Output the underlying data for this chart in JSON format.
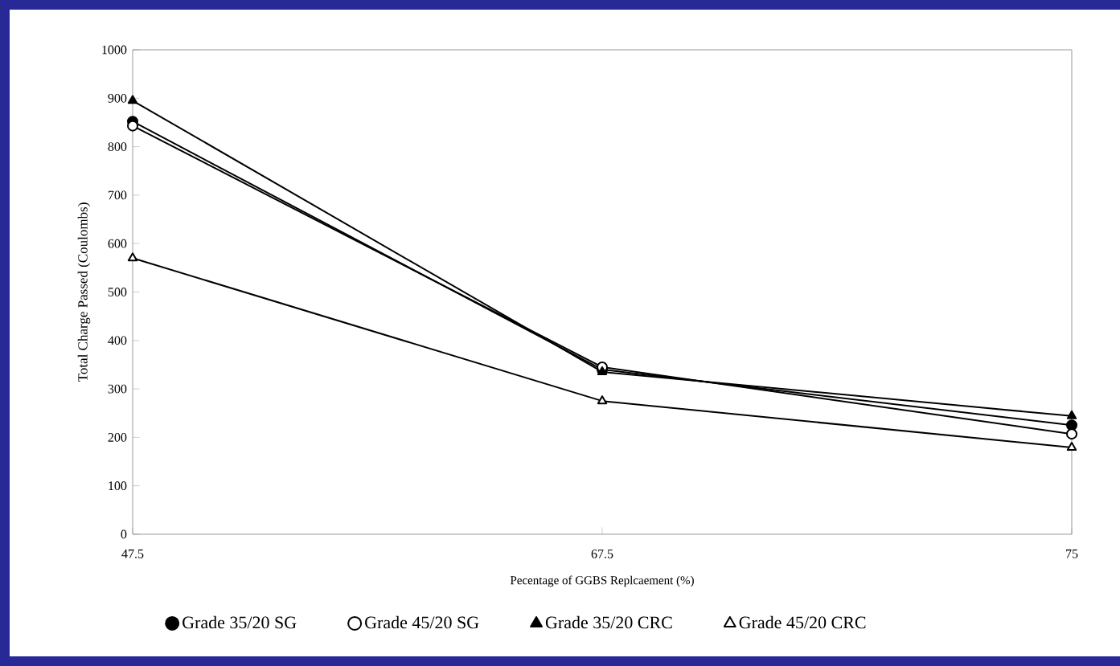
{
  "chart_data": {
    "type": "line",
    "xlabel": "Pecentage of GGBS Replcaement (%)",
    "ylabel": "Total Charge Passed (Coulombs)",
    "categories": [
      "47.5",
      "67.5",
      "75"
    ],
    "series": [
      {
        "name": "Grade 35/20 SG",
        "color": "#000000",
        "marker": "circle",
        "values": [
          852,
          340,
          225
        ]
      },
      {
        "name": "Grade 45/20 SG",
        "color": "#ffffff",
        "marker": "circle",
        "values": [
          843,
          345,
          207
        ]
      },
      {
        "name": "Grade 35/20 CRC",
        "color": "#000000",
        "marker": "triangle",
        "values": [
          895,
          335,
          244
        ]
      },
      {
        "name": "Grade 45/20 CRC",
        "color": "#ffffff",
        "marker": "triangle",
        "values": [
          570,
          275,
          179
        ]
      }
    ],
    "ylim": [
      0,
      1000
    ],
    "yticks": [
      0,
      100,
      200,
      300,
      400,
      500,
      600,
      700,
      800,
      900,
      1000
    ],
    "grid": false,
    "legend": "bottom",
    "line_style": "solid"
  }
}
